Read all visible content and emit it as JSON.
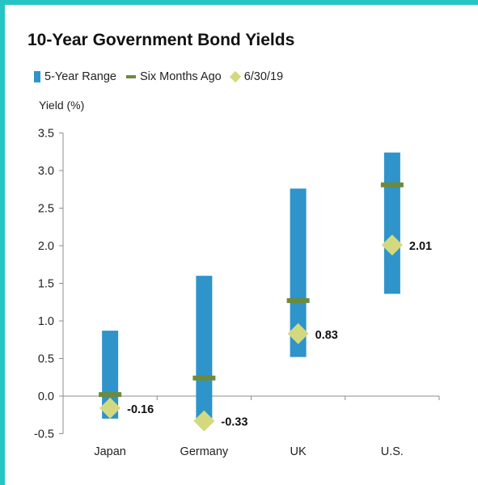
{
  "chart_data": {
    "type": "range-marker",
    "title": "10-Year Government Bond Yields",
    "ylabel": "Yield (%)",
    "xlabel": "",
    "ylim": [
      -0.5,
      3.5
    ],
    "yticks": [
      "3.5",
      "3.0",
      "2.5",
      "2.0",
      "1.5",
      "1.0",
      "0.5",
      "0.0",
      "-0.5"
    ],
    "ytick_values": [
      3.5,
      3.0,
      2.5,
      2.0,
      1.5,
      1.0,
      0.5,
      0.0,
      -0.5
    ],
    "categories": [
      "Japan",
      "Germany",
      "UK",
      "U.S."
    ],
    "series": [
      {
        "name": "5-Year Range",
        "kind": "range",
        "values": [
          [
            -0.3,
            0.87
          ],
          [
            -0.33,
            1.6
          ],
          [
            0.52,
            2.76
          ],
          [
            1.36,
            3.24
          ]
        ]
      },
      {
        "name": "Six Months Ago",
        "kind": "dash",
        "values": [
          0.02,
          0.24,
          1.27,
          2.81
        ]
      },
      {
        "name": "6/30/19",
        "kind": "diamond",
        "values": [
          -0.16,
          -0.33,
          0.83,
          2.01
        ],
        "labels": [
          "-0.16",
          "-0.33",
          "0.83",
          "2.01"
        ]
      }
    ],
    "grid": false,
    "legend_position": "top-left"
  },
  "colors": {
    "range": "#2e94c9",
    "six_months": "#6d8a3c",
    "current": "#d4d97f",
    "frame": "#27c4c4",
    "axis": "#8c8c8c"
  }
}
